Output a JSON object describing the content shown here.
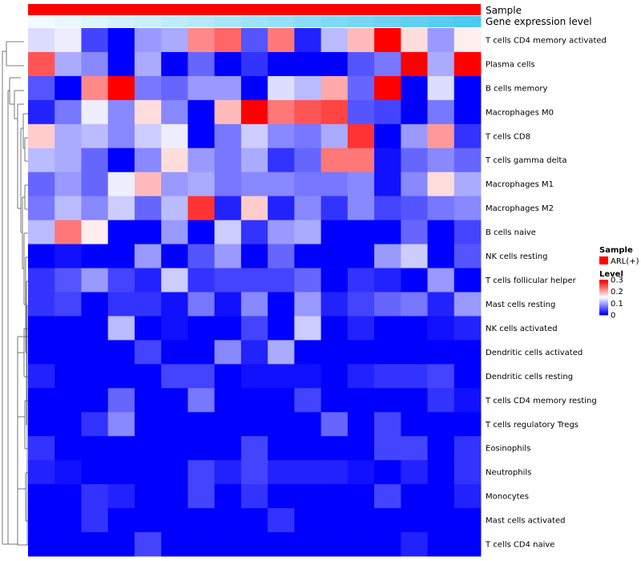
{
  "chart_data": {
    "type": "heatmap",
    "title": "",
    "annotation_tracks": [
      {
        "name": "Sample",
        "label": "Sample",
        "color": "#ff0000"
      },
      {
        "name": "Gene expression level",
        "label": "Gene expression level",
        "gradient": [
          "#f2fbff",
          "#4ccaf0"
        ]
      }
    ],
    "rows": [
      "T cells CD4 memory activated",
      "Plasma cells",
      "B cells memory",
      "Macrophages M0",
      "T cells CD8",
      "T cells gamma delta",
      "Macrophages M1",
      "Macrophages M2",
      "B cells naive",
      "NK cells resting",
      "T cells follicular helper",
      "Mast cells resting",
      "NK cells activated",
      "Dendritic cells activated",
      "Dendritic cells resting",
      "T cells CD4 memory resting",
      "T cells regulatory  Tregs",
      "Eosinophils",
      "Neutrophils",
      "Monocytes",
      "Mast cells activated",
      "T cells CD4 naive"
    ],
    "n_columns": 17,
    "values": [
      [
        0.13,
        0.14,
        0.04,
        0.0,
        0.09,
        0.1,
        0.22,
        0.24,
        0.05,
        0.23,
        0.02,
        0.11,
        0.19,
        0.32,
        0.17,
        0.09,
        0.16
      ],
      [
        0.25,
        0.1,
        0.08,
        0.0,
        0.1,
        0.0,
        0.06,
        0.0,
        0.03,
        0.0,
        0.0,
        0.0,
        0.05,
        0.07,
        0.3,
        0.1,
        0.32
      ],
      [
        0.05,
        0.0,
        0.22,
        0.33,
        0.07,
        0.06,
        0.09,
        0.09,
        0.0,
        0.13,
        0.11,
        0.2,
        0.06,
        0.33,
        0.0,
        0.13,
        0.0
      ],
      [
        0.02,
        0.07,
        0.14,
        0.08,
        0.17,
        0.08,
        0.0,
        0.19,
        0.33,
        0.23,
        0.25,
        0.26,
        0.05,
        0.04,
        0.0,
        0.07,
        0.0
      ],
      [
        0.18,
        0.1,
        0.11,
        0.08,
        0.12,
        0.14,
        0.0,
        0.07,
        0.12,
        0.08,
        0.07,
        0.1,
        0.27,
        0.0,
        0.09,
        0.21,
        0.03
      ],
      [
        0.11,
        0.1,
        0.06,
        0.0,
        0.08,
        0.17,
        0.09,
        0.07,
        0.1,
        0.03,
        0.06,
        0.23,
        0.23,
        0.01,
        0.06,
        0.08,
        0.06
      ],
      [
        0.06,
        0.09,
        0.06,
        0.14,
        0.19,
        0.09,
        0.1,
        0.07,
        0.08,
        0.08,
        0.07,
        0.07,
        0.08,
        0.01,
        0.08,
        0.17,
        0.1
      ],
      [
        0.07,
        0.11,
        0.08,
        0.12,
        0.06,
        0.11,
        0.27,
        0.02,
        0.18,
        0.02,
        0.08,
        0.03,
        0.08,
        0.04,
        0.05,
        0.07,
        0.08
      ],
      [
        0.11,
        0.23,
        0.16,
        0.0,
        0.0,
        0.09,
        0.0,
        0.12,
        0.03,
        0.09,
        0.1,
        0.0,
        0.0,
        0.0,
        0.06,
        0.0,
        0.04
      ],
      [
        0.0,
        0.01,
        0.0,
        0.0,
        0.09,
        0.0,
        0.05,
        0.09,
        0.0,
        0.06,
        0.0,
        0.0,
        0.0,
        0.09,
        0.12,
        0.0,
        0.05
      ],
      [
        0.03,
        0.05,
        0.09,
        0.04,
        0.02,
        0.12,
        0.03,
        0.04,
        0.04,
        0.04,
        0.06,
        0.0,
        0.03,
        0.02,
        0.0,
        0.09,
        0.0
      ],
      [
        0.03,
        0.04,
        0.0,
        0.03,
        0.03,
        0.01,
        0.07,
        0.01,
        0.08,
        0.0,
        0.09,
        0.02,
        0.04,
        0.06,
        0.07,
        0.02,
        0.09
      ],
      [
        0.0,
        0.0,
        0.0,
        0.11,
        0.0,
        0.01,
        0.0,
        0.0,
        0.04,
        0.0,
        0.12,
        0.0,
        0.02,
        0.0,
        0.0,
        0.01,
        0.02
      ],
      [
        0.0,
        0.0,
        0.0,
        0.0,
        0.04,
        0.0,
        0.0,
        0.08,
        0.02,
        0.1,
        0.0,
        0.0,
        0.0,
        0.0,
        0.0,
        0.0,
        0.0
      ],
      [
        0.02,
        0.0,
        0.0,
        0.0,
        0.0,
        0.04,
        0.04,
        0.0,
        0.01,
        0.01,
        0.01,
        0.0,
        0.02,
        0.03,
        0.03,
        0.04,
        0.0
      ],
      [
        0.0,
        0.0,
        0.0,
        0.06,
        0.0,
        0.0,
        0.07,
        0.0,
        0.0,
        0.0,
        0.04,
        0.0,
        0.0,
        0.0,
        0.0,
        0.03,
        0.01
      ],
      [
        0.0,
        0.0,
        0.03,
        0.08,
        0.0,
        0.0,
        0.0,
        0.0,
        0.0,
        0.0,
        0.0,
        0.06,
        0.0,
        0.04,
        0.0,
        0.0,
        0.0
      ],
      [
        0.03,
        0.0,
        0.0,
        0.0,
        0.0,
        0.0,
        0.0,
        0.0,
        0.04,
        0.0,
        0.0,
        0.0,
        0.0,
        0.04,
        0.04,
        0.0,
        0.03
      ],
      [
        0.02,
        0.01,
        0.0,
        0.0,
        0.0,
        0.0,
        0.04,
        0.02,
        0.04,
        0.02,
        0.02,
        0.02,
        0.01,
        0.0,
        0.02,
        0.0,
        0.03
      ],
      [
        0.0,
        0.0,
        0.03,
        0.02,
        0.0,
        0.0,
        0.04,
        0.0,
        0.03,
        0.0,
        0.0,
        0.0,
        0.0,
        0.04,
        0.0,
        0.0,
        0.02
      ],
      [
        0.0,
        0.0,
        0.03,
        0.0,
        0.0,
        0.0,
        0.0,
        0.0,
        0.0,
        0.03,
        0.0,
        0.0,
        0.0,
        0.0,
        0.0,
        0.0,
        0.0
      ],
      [
        0.0,
        0.0,
        0.0,
        0.0,
        0.04,
        0.0,
        0.0,
        0.0,
        0.0,
        0.0,
        0.0,
        0.0,
        0.0,
        0.0,
        0.02,
        0.0,
        0.0
      ]
    ],
    "color_scale": {
      "min": 0,
      "max": 0.3,
      "low": "#0000ff",
      "mid": "#ffffff",
      "mid_value": 0.15,
      "high": "#ff0000"
    },
    "legend": {
      "sample_title": "Sample",
      "sample_entry": "ARL(+)",
      "level_title": "Level",
      "level_ticks": [
        "0.3",
        "0.2",
        "0.1",
        "0"
      ],
      "level_tick_values": [
        0.3,
        0.2,
        0.1,
        0
      ],
      "placement": "right"
    },
    "dendrogram": "rows"
  }
}
